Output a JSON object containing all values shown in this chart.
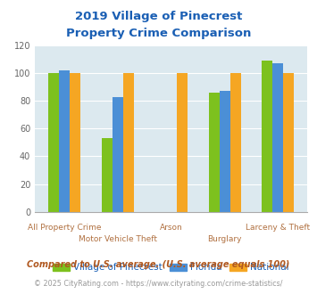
{
  "title_line1": "2019 Village of Pinecrest",
  "title_line2": "Property Crime Comparison",
  "categories": [
    "All Property Crime",
    "Motor Vehicle Theft",
    "Arson",
    "Burglary",
    "Larceny & Theft"
  ],
  "label_row": [
    1,
    0,
    1,
    0,
    1
  ],
  "series": {
    "Village of Pinecrest": [
      100,
      53,
      0,
      86,
      109
    ],
    "Florida": [
      102,
      83,
      0,
      87,
      107
    ],
    "National": [
      100,
      100,
      100,
      100,
      100
    ]
  },
  "colors": {
    "Village of Pinecrest": "#7dc11e",
    "Florida": "#4b8fd6",
    "National": "#f5a623"
  },
  "ylim": [
    0,
    120
  ],
  "yticks": [
    0,
    20,
    40,
    60,
    80,
    100,
    120
  ],
  "title_color": "#1a5fb4",
  "xlabel_upper_color": "#b07040",
  "xlabel_lower_color": "#b07040",
  "legend_text_color": "#1a5fb4",
  "note_text": "Compared to U.S. average. (U.S. average equals 100)",
  "note_color": "#b05820",
  "footer_text_left": "© 2025 CityRating.com - ",
  "footer_text_link": "https://www.cityrating.com/crime-statistics/",
  "footer_color": "#999999",
  "footer_link_color": "#4488cc",
  "bg_color": "#dce9ef",
  "fig_bg_color": "#ffffff",
  "bar_width": 0.2,
  "grid_color": "#ffffff"
}
